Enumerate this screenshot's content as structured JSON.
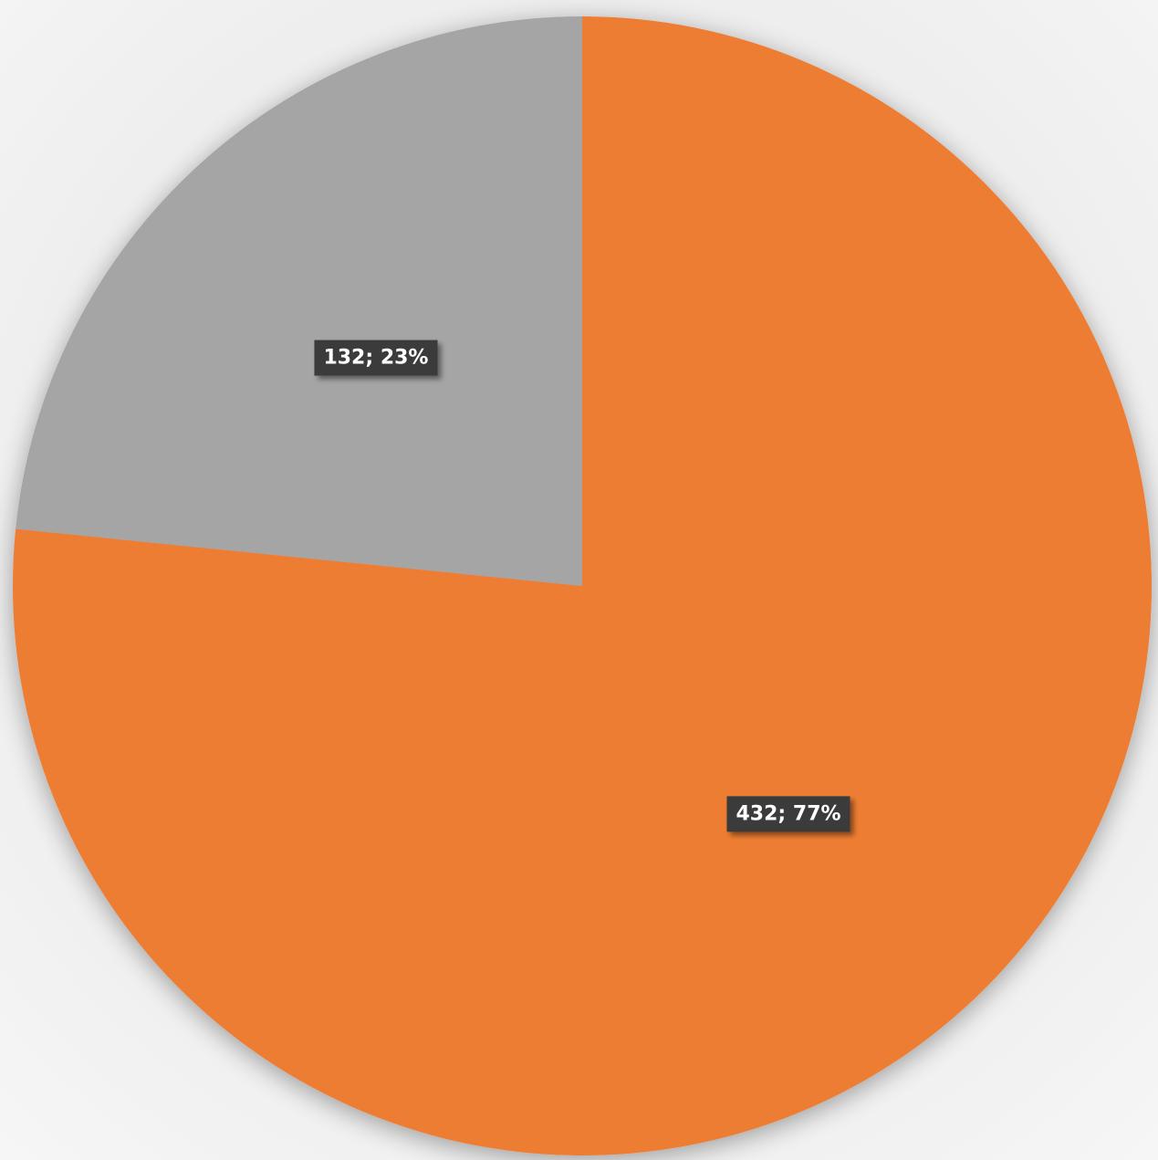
{
  "chart_data": {
    "type": "pie",
    "title": "",
    "start_angle_deg": 0,
    "direction": "clockwise",
    "slices": [
      {
        "value": 432,
        "label": "432; 77%",
        "color": "#ED7D31"
      },
      {
        "value": 132,
        "label": "132; 23%",
        "color": "#A5A5A5"
      }
    ],
    "legend": "none",
    "label_style": {
      "background": "#3a3a3a",
      "text_color": "#ffffff"
    }
  }
}
